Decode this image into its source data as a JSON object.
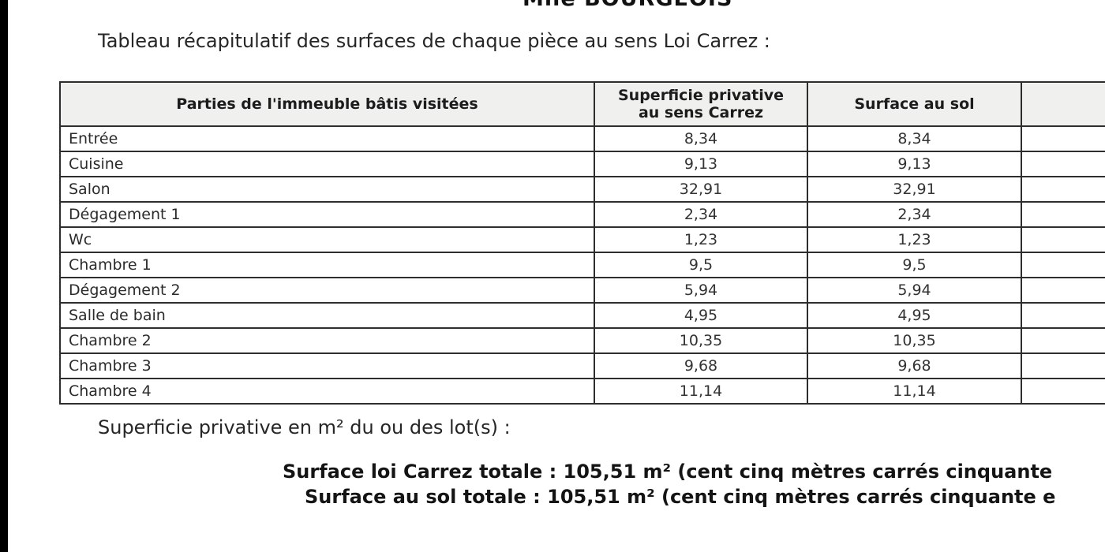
{
  "doc": {
    "addressee": "Mlle BOURGEOIS",
    "caption": "Tableau récapitulatif des surfaces de chaque pièce au sens Loi Carrez :",
    "table": {
      "headers": [
        "Parties de l'immeuble bâtis visitées",
        "Superficie privative au sens Carrez",
        "Surface au sol"
      ],
      "rows": [
        {
          "room": "Entrée",
          "carrez": "8,34",
          "floor": "8,34"
        },
        {
          "room": "Cuisine",
          "carrez": "9,13",
          "floor": "9,13"
        },
        {
          "room": "Salon",
          "carrez": "32,91",
          "floor": "32,91"
        },
        {
          "room": "Dégagement 1",
          "carrez": "2,34",
          "floor": "2,34"
        },
        {
          "room": "Wc",
          "carrez": "1,23",
          "floor": "1,23"
        },
        {
          "room": "Chambre 1",
          "carrez": "9,5",
          "floor": "9,5"
        },
        {
          "room": "Dégagement 2",
          "carrez": "5,94",
          "floor": "5,94"
        },
        {
          "room": "Salle de bain",
          "carrez": "4,95",
          "floor": "4,95"
        },
        {
          "room": "Chambre 2",
          "carrez": "10,35",
          "floor": "10,35"
        },
        {
          "room": "Chambre 3",
          "carrez": "9,68",
          "floor": "9,68"
        },
        {
          "room": "Chambre 4",
          "carrez": "11,14",
          "floor": "11,14"
        }
      ]
    },
    "lots_label": "Superficie privative en m² du ou des lot(s) :",
    "totals": [
      "Surface loi Carrez totale : 105,51 m² (cent cinq mètres carrés cinquante",
      "Surface au sol totale : 105,51 m² (cent cinq mètres carrés cinquante e"
    ]
  }
}
